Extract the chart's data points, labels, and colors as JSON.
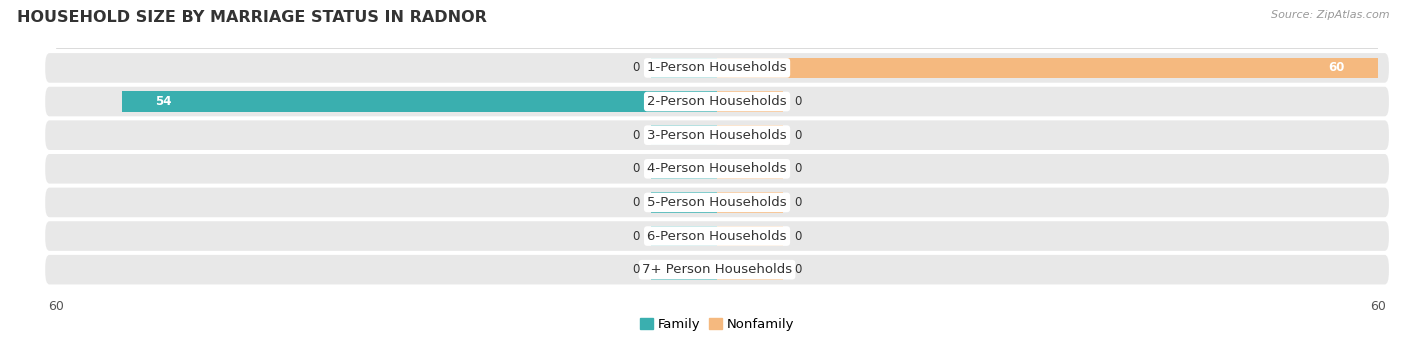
{
  "title": "HOUSEHOLD SIZE BY MARRIAGE STATUS IN RADNOR",
  "source": "Source: ZipAtlas.com",
  "categories": [
    "7+ Person Households",
    "6-Person Households",
    "5-Person Households",
    "4-Person Households",
    "3-Person Households",
    "2-Person Households",
    "1-Person Households"
  ],
  "family_values": [
    0,
    0,
    0,
    0,
    0,
    54,
    0
  ],
  "nonfamily_values": [
    0,
    0,
    0,
    0,
    0,
    0,
    60
  ],
  "family_color": "#3AAFAF",
  "nonfamily_color": "#F5B97F",
  "xlim": 60,
  "bar_height": 0.6,
  "stub_size": 6,
  "row_bg_color": "#E8E8E8",
  "label_bg_color": "#FFFFFF",
  "label_fontsize": 9.5,
  "title_fontsize": 11.5,
  "value_fontsize": 8.5,
  "axis_tick_fontsize": 9
}
